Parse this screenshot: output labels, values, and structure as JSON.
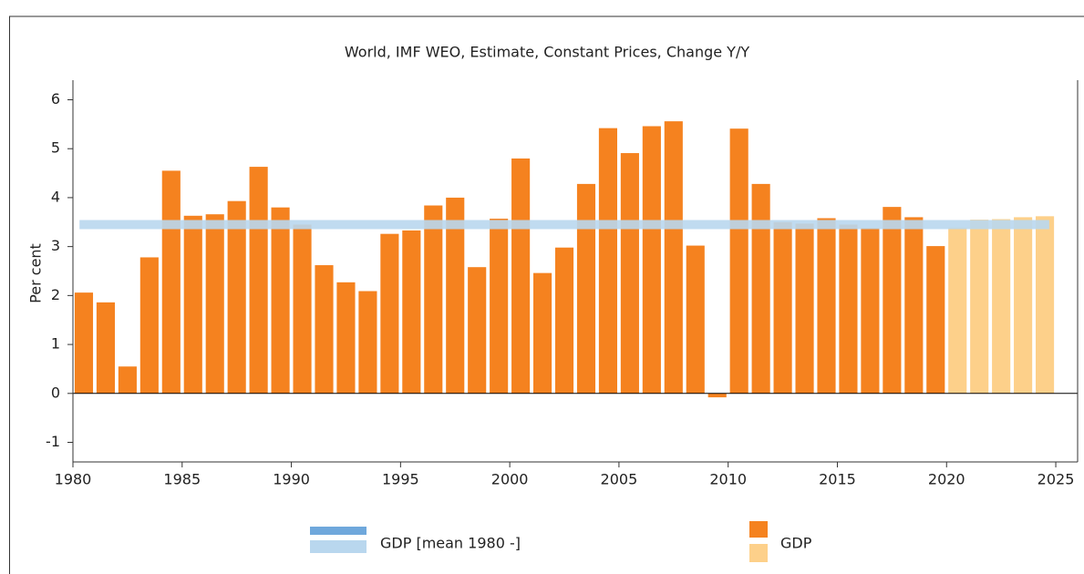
{
  "chart_data": {
    "type": "bar",
    "title": "World, IMF WEO, Estimate, Constant Prices, Change Y/Y",
    "y_label": "Per cent",
    "x": [
      1980,
      1981,
      1982,
      1983,
      1984,
      1985,
      1986,
      1987,
      1988,
      1989,
      1990,
      1991,
      1992,
      1993,
      1994,
      1995,
      1996,
      1997,
      1998,
      1999,
      2000,
      2001,
      2002,
      2003,
      2004,
      2005,
      2006,
      2007,
      2008,
      2009,
      2010,
      2011,
      2012,
      2013,
      2014,
      2015,
      2016,
      2017,
      2018,
      2019,
      2020,
      2021,
      2022,
      2023,
      2024
    ],
    "xlim": [
      1980,
      2026
    ],
    "xticks": [
      1980,
      1985,
      1990,
      1995,
      2000,
      2005,
      2010,
      2015,
      2020,
      2025
    ],
    "ylim": [
      -1.4,
      6.4
    ],
    "yticks": [
      -1,
      0,
      1,
      2,
      3,
      4,
      5,
      6
    ],
    "series": [
      {
        "name": "GDP",
        "type": "bar",
        "color": "#f5821f",
        "estimate_color": "#fdd08a",
        "estimate": [
          false,
          false,
          false,
          false,
          false,
          false,
          false,
          false,
          false,
          false,
          false,
          false,
          false,
          false,
          false,
          false,
          false,
          false,
          false,
          false,
          false,
          false,
          false,
          false,
          false,
          false,
          false,
          false,
          false,
          false,
          false,
          false,
          false,
          false,
          false,
          false,
          false,
          false,
          false,
          false,
          true,
          true,
          true,
          true,
          true
        ],
        "values": [
          2.06,
          1.86,
          0.55,
          2.78,
          4.55,
          3.63,
          3.66,
          3.93,
          4.63,
          3.8,
          3.45,
          2.62,
          2.27,
          2.09,
          3.26,
          3.33,
          3.84,
          4.0,
          2.58,
          3.57,
          4.8,
          2.46,
          2.98,
          4.28,
          5.42,
          4.91,
          5.46,
          5.56,
          3.02,
          -0.08,
          5.41,
          4.28,
          3.5,
          3.47,
          3.58,
          3.45,
          3.38,
          3.81,
          3.6,
          3.01,
          3.39,
          3.55,
          3.56,
          3.6,
          3.62
        ]
      },
      {
        "name": "GDP [mean 1980 -]",
        "type": "hline",
        "color": "#b9d7ee",
        "legend_color": "#6fa8dc",
        "value": 3.45
      }
    ]
  }
}
